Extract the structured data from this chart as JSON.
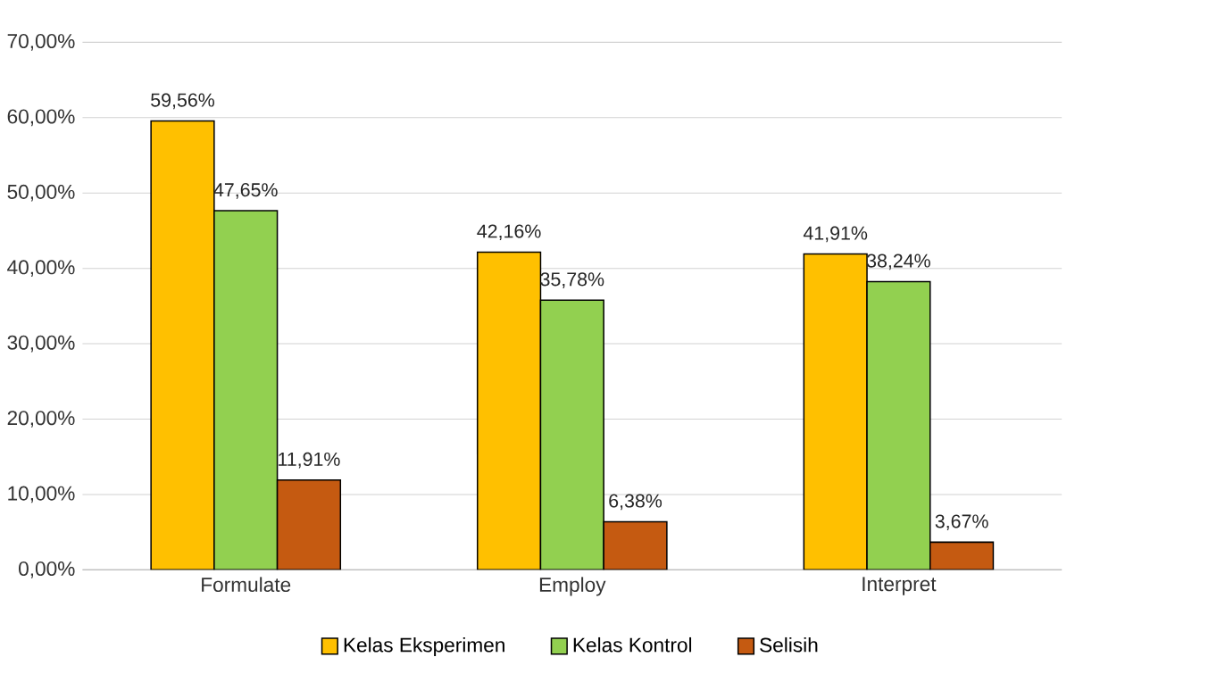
{
  "chart_data": {
    "type": "bar",
    "categories": [
      "Formulate",
      "Employ",
      "Interpret"
    ],
    "series": [
      {
        "name": "Kelas Eksperimen",
        "color": "#ffc000",
        "values": [
          59.56,
          42.16,
          41.91
        ],
        "value_labels": [
          "59,56%",
          "42,16%",
          "41,91%"
        ]
      },
      {
        "name": "Kelas Kontrol",
        "color": "#92d050",
        "values": [
          47.65,
          35.78,
          38.24
        ],
        "value_labels": [
          "47,65%",
          "35,78%",
          "38,24%"
        ]
      },
      {
        "name": "Selisih",
        "color": "#c55a11",
        "values": [
          11.91,
          6.38,
          3.67
        ],
        "value_labels": [
          "11,91%",
          "6,38%",
          "3,67%"
        ]
      }
    ],
    "ylim": [
      0,
      70
    ],
    "yticks": [
      {
        "value": 0,
        "label": "0,00%"
      },
      {
        "value": 10,
        "label": "10,00%"
      },
      {
        "value": 20,
        "label": "20,00%"
      },
      {
        "value": 30,
        "label": "30,00%"
      },
      {
        "value": 40,
        "label": "40,00%"
      },
      {
        "value": 50,
        "label": "50,00%"
      },
      {
        "value": 60,
        "label": "60,00%"
      },
      {
        "value": 70,
        "label": "70,00%"
      }
    ],
    "grid": "y",
    "legend": "bottom"
  }
}
